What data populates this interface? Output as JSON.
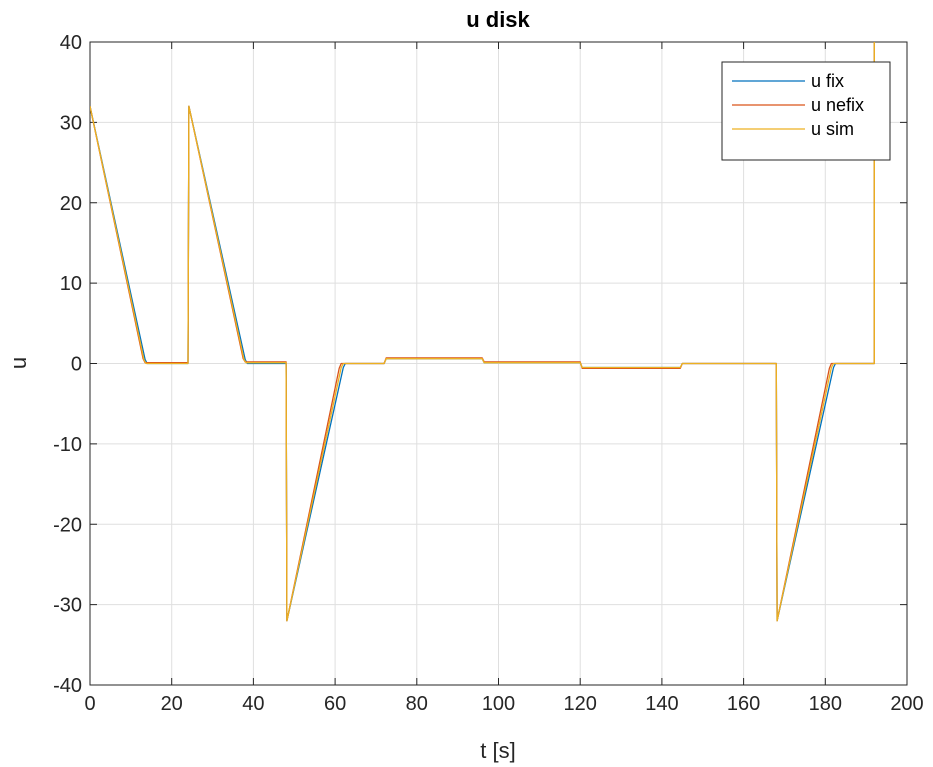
{
  "chart_data": {
    "type": "line",
    "title": "u disk",
    "xlabel": "t [s]",
    "ylabel": "u",
    "xlim": [
      0,
      200
    ],
    "ylim": [
      -40,
      40
    ],
    "xticks": [
      0,
      20,
      40,
      60,
      80,
      100,
      120,
      140,
      160,
      180,
      200
    ],
    "yticks": [
      -40,
      -30,
      -20,
      -10,
      0,
      10,
      20,
      30,
      40
    ],
    "grid": true,
    "legend_position": "top-right",
    "series": [
      {
        "name": "u fix",
        "color": "#0072BD",
        "x": [
          0,
          13.5,
          14,
          24,
          24.2,
          38,
          38.5,
          48,
          48.2,
          62,
          62.5,
          72,
          72.5,
          96,
          96.5,
          120,
          120.5,
          144.5,
          145,
          168,
          168.2,
          182,
          182.5,
          192,
          192
        ],
        "y": [
          32,
          0.5,
          0,
          0,
          32,
          0.5,
          0,
          0,
          -32,
          -0.5,
          0,
          0,
          0.6,
          0.6,
          0.1,
          0.1,
          -0.5,
          -0.5,
          0,
          0,
          -32,
          -0.5,
          0,
          0,
          40
        ]
      },
      {
        "name": "u nefix",
        "color": "#D95319",
        "x": [
          0,
          13,
          13.5,
          24,
          24.2,
          37.5,
          38,
          48,
          48.2,
          61,
          61.5,
          72,
          72.5,
          96,
          96.5,
          120,
          120.5,
          144.5,
          145,
          168,
          168.2,
          181,
          181.5,
          192,
          192
        ],
        "y": [
          32,
          0.6,
          0.1,
          0.1,
          32,
          0.6,
          0.2,
          0.2,
          -32,
          -0.6,
          0,
          0,
          0.7,
          0.7,
          0.2,
          0.2,
          -0.6,
          -0.6,
          0,
          0,
          -32,
          -0.6,
          0,
          0,
          40
        ]
      },
      {
        "name": "u sim",
        "color": "#EDB120",
        "x": [
          0,
          13.2,
          13.7,
          24,
          24.2,
          37.7,
          38.2,
          48,
          48.2,
          61.5,
          62,
          72,
          72.5,
          96,
          96.5,
          120,
          120.5,
          144.5,
          145,
          168,
          168.2,
          181.5,
          182,
          192,
          192
        ],
        "y": [
          32,
          0.5,
          0,
          0,
          32,
          0.5,
          0.1,
          0.1,
          -32,
          -0.5,
          0,
          0,
          0.6,
          0.6,
          0.1,
          0.1,
          -0.5,
          -0.5,
          0,
          0,
          -32,
          -0.5,
          0,
          0,
          40
        ]
      }
    ]
  }
}
